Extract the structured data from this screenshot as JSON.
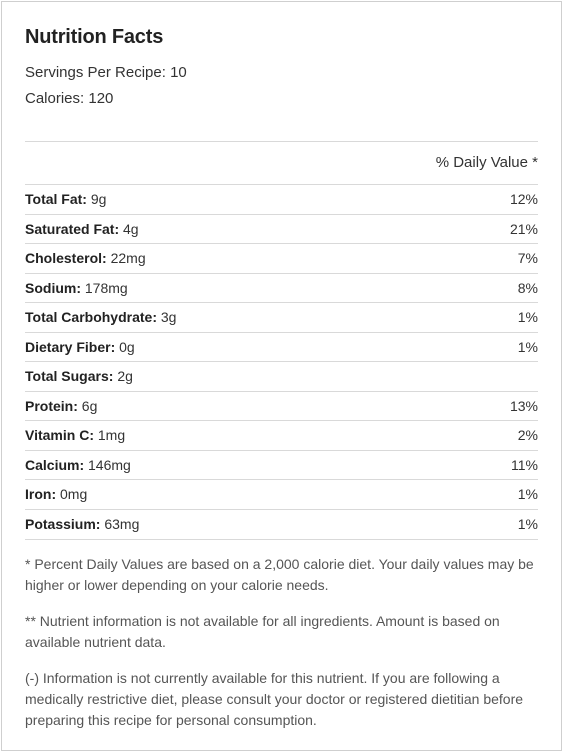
{
  "title": "Nutrition Facts",
  "servings": "Servings Per Recipe: 10",
  "calories": "Calories: 120",
  "daily_value_header": "% Daily Value *",
  "nutrients": [
    {
      "label": "Total Fat:",
      "amount": "9g",
      "dv": "12%"
    },
    {
      "label": "Saturated Fat:",
      "amount": "4g",
      "dv": "21%"
    },
    {
      "label": "Cholesterol:",
      "amount": "22mg",
      "dv": "7%"
    },
    {
      "label": "Sodium:",
      "amount": "178mg",
      "dv": "8%"
    },
    {
      "label": "Total Carbohydrate:",
      "amount": "3g",
      "dv": "1%"
    },
    {
      "label": "Dietary Fiber:",
      "amount": "0g",
      "dv": "1%"
    },
    {
      "label": "Total Sugars:",
      "amount": "2g",
      "dv": ""
    },
    {
      "label": "Protein:",
      "amount": "6g",
      "dv": "13%"
    },
    {
      "label": "Vitamin C:",
      "amount": "1mg",
      "dv": "2%"
    },
    {
      "label": "Calcium:",
      "amount": "146mg",
      "dv": "11%"
    },
    {
      "label": "Iron:",
      "amount": "0mg",
      "dv": "1%"
    },
    {
      "label": "Potassium:",
      "amount": "63mg",
      "dv": "1%"
    }
  ],
  "notes": [
    "* Percent Daily Values are based on a 2,000 calorie diet. Your daily values may be higher or lower depending on your calorie needs.",
    "** Nutrient information is not available for all ingredients. Amount is based on available nutrient data.",
    "(-) Information is not currently available for this nutrient. If you are following a medically restrictive diet, please consult your doctor or registered dietitian before preparing this recipe for personal consumption."
  ]
}
